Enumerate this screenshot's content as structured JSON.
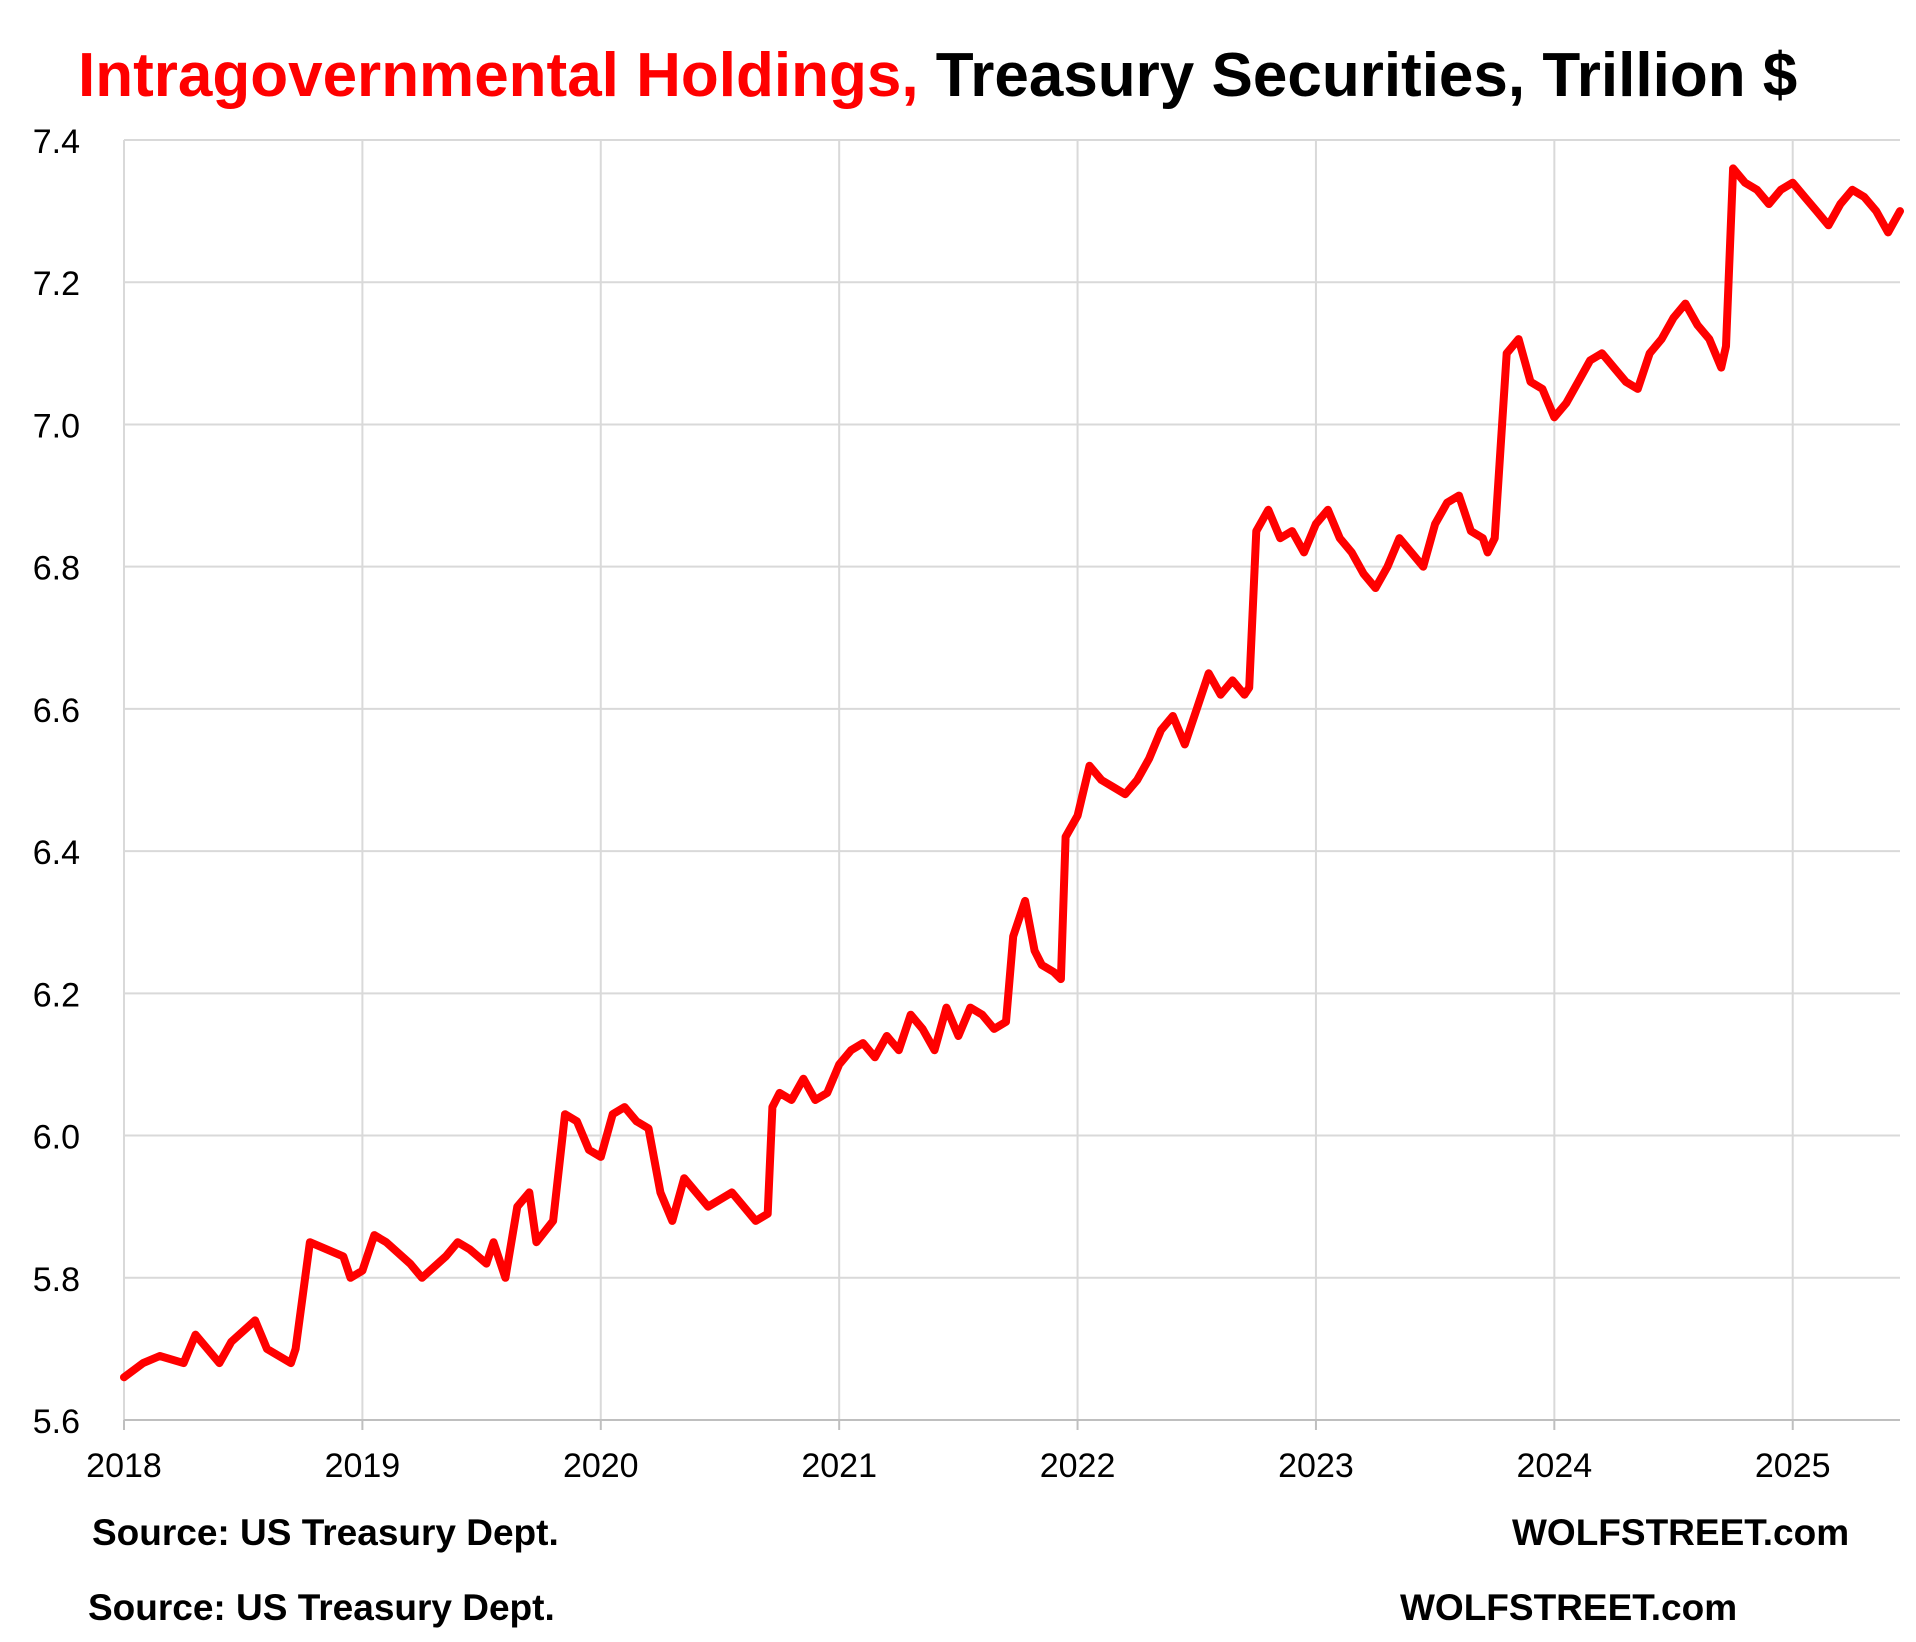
{
  "title": {
    "highlight": "Intragovernmental Holdings,",
    "rest": "Treasury Securities, Trillion $"
  },
  "colors": {
    "series": "#ff0000",
    "title_highlight": "#ff0000",
    "grid": "#d9d9d9",
    "axis": "#bfbfbf"
  },
  "footer": {
    "source_1": "Source: US Treasury Dept.",
    "brand_1": "WOLFSTREET.com",
    "source_2": "Source: US Treasury Dept.",
    "brand_2": "WOLFSTREET.com"
  },
  "chart_data": {
    "type": "line",
    "title": "Intragovernmental Holdings, Treasury Securities, Trillion $",
    "xlabel": "",
    "ylabel": "",
    "xlim": [
      2018.0,
      2025.45
    ],
    "ylim": [
      5.6,
      7.4
    ],
    "grid": true,
    "legend": "none",
    "x_ticks": [
      "2018",
      "2019",
      "2020",
      "2021",
      "2022",
      "2023",
      "2024",
      "2025"
    ],
    "y_ticks": [
      "5.6",
      "5.8",
      "6.0",
      "6.2",
      "6.4",
      "6.6",
      "6.8",
      "7.0",
      "7.2",
      "7.4"
    ],
    "series": [
      {
        "x": [
          2018.0,
          2018.08,
          2018.15,
          2018.25,
          2018.3,
          2018.4,
          2018.45,
          2018.55,
          2018.6,
          2018.7,
          2018.72,
          2018.78,
          2018.85,
          2018.92,
          2018.95,
          2019.0,
          2019.05,
          2019.1,
          2019.2,
          2019.25,
          2019.35,
          2019.4,
          2019.45,
          2019.52,
          2019.55,
          2019.6,
          2019.65,
          2019.7,
          2019.73,
          2019.8,
          2019.85,
          2019.9,
          2019.95,
          2020.0,
          2020.05,
          2020.1,
          2020.15,
          2020.2,
          2020.25,
          2020.3,
          2020.35,
          2020.45,
          2020.55,
          2020.65,
          2020.7,
          2020.72,
          2020.75,
          2020.8,
          2020.85,
          2020.9,
          2020.95,
          2021.0,
          2021.05,
          2021.1,
          2021.15,
          2021.2,
          2021.25,
          2021.3,
          2021.35,
          2021.4,
          2021.45,
          2021.5,
          2021.55,
          2021.6,
          2021.65,
          2021.7,
          2021.73,
          2021.78,
          2021.82,
          2021.85,
          2021.9,
          2021.93,
          2021.95,
          2022.0,
          2022.05,
          2022.1,
          2022.15,
          2022.2,
          2022.25,
          2022.3,
          2022.35,
          2022.4,
          2022.45,
          2022.5,
          2022.55,
          2022.6,
          2022.65,
          2022.7,
          2022.72,
          2022.75,
          2022.8,
          2022.85,
          2022.9,
          2022.95,
          2023.0,
          2023.05,
          2023.1,
          2023.15,
          2023.2,
          2023.25,
          2023.3,
          2023.35,
          2023.4,
          2023.45,
          2023.5,
          2023.55,
          2023.6,
          2023.65,
          2023.7,
          2023.72,
          2023.75,
          2023.8,
          2023.85,
          2023.9,
          2023.95,
          2024.0,
          2024.05,
          2024.1,
          2024.15,
          2024.2,
          2024.25,
          2024.3,
          2024.35,
          2024.4,
          2024.45,
          2024.5,
          2024.55,
          2024.6,
          2024.65,
          2024.7,
          2024.72,
          2024.75,
          2024.8,
          2024.85,
          2024.9,
          2024.95,
          2025.0,
          2025.05,
          2025.1,
          2025.15,
          2025.2,
          2025.25,
          2025.3,
          2025.35,
          2025.4,
          2025.45
        ],
        "y": [
          5.66,
          5.68,
          5.69,
          5.68,
          5.72,
          5.68,
          5.71,
          5.74,
          5.7,
          5.68,
          5.7,
          5.85,
          5.84,
          5.83,
          5.8,
          5.81,
          5.86,
          5.85,
          5.82,
          5.8,
          5.83,
          5.85,
          5.84,
          5.82,
          5.85,
          5.8,
          5.9,
          5.92,
          5.85,
          5.88,
          6.03,
          6.02,
          5.98,
          5.97,
          6.03,
          6.04,
          6.02,
          6.01,
          5.92,
          5.88,
          5.94,
          5.9,
          5.92,
          5.88,
          5.89,
          6.04,
          6.06,
          6.05,
          6.08,
          6.05,
          6.06,
          6.1,
          6.12,
          6.13,
          6.11,
          6.14,
          6.12,
          6.17,
          6.15,
          6.12,
          6.18,
          6.14,
          6.18,
          6.17,
          6.15,
          6.16,
          6.28,
          6.33,
          6.26,
          6.24,
          6.23,
          6.22,
          6.42,
          6.45,
          6.52,
          6.5,
          6.49,
          6.48,
          6.5,
          6.53,
          6.57,
          6.59,
          6.55,
          6.6,
          6.65,
          6.62,
          6.64,
          6.62,
          6.63,
          6.85,
          6.88,
          6.84,
          6.85,
          6.82,
          6.86,
          6.88,
          6.84,
          6.82,
          6.79,
          6.77,
          6.8,
          6.84,
          6.82,
          6.8,
          6.86,
          6.89,
          6.9,
          6.85,
          6.84,
          6.82,
          6.84,
          7.1,
          7.12,
          7.06,
          7.05,
          7.01,
          7.03,
          7.06,
          7.09,
          7.1,
          7.08,
          7.06,
          7.05,
          7.1,
          7.12,
          7.15,
          7.17,
          7.14,
          7.12,
          7.08,
          7.11,
          7.36,
          7.34,
          7.33,
          7.31,
          7.33,
          7.34,
          7.32,
          7.3,
          7.28,
          7.31,
          7.33,
          7.32,
          7.3,
          7.27,
          7.3
        ]
      }
    ]
  }
}
